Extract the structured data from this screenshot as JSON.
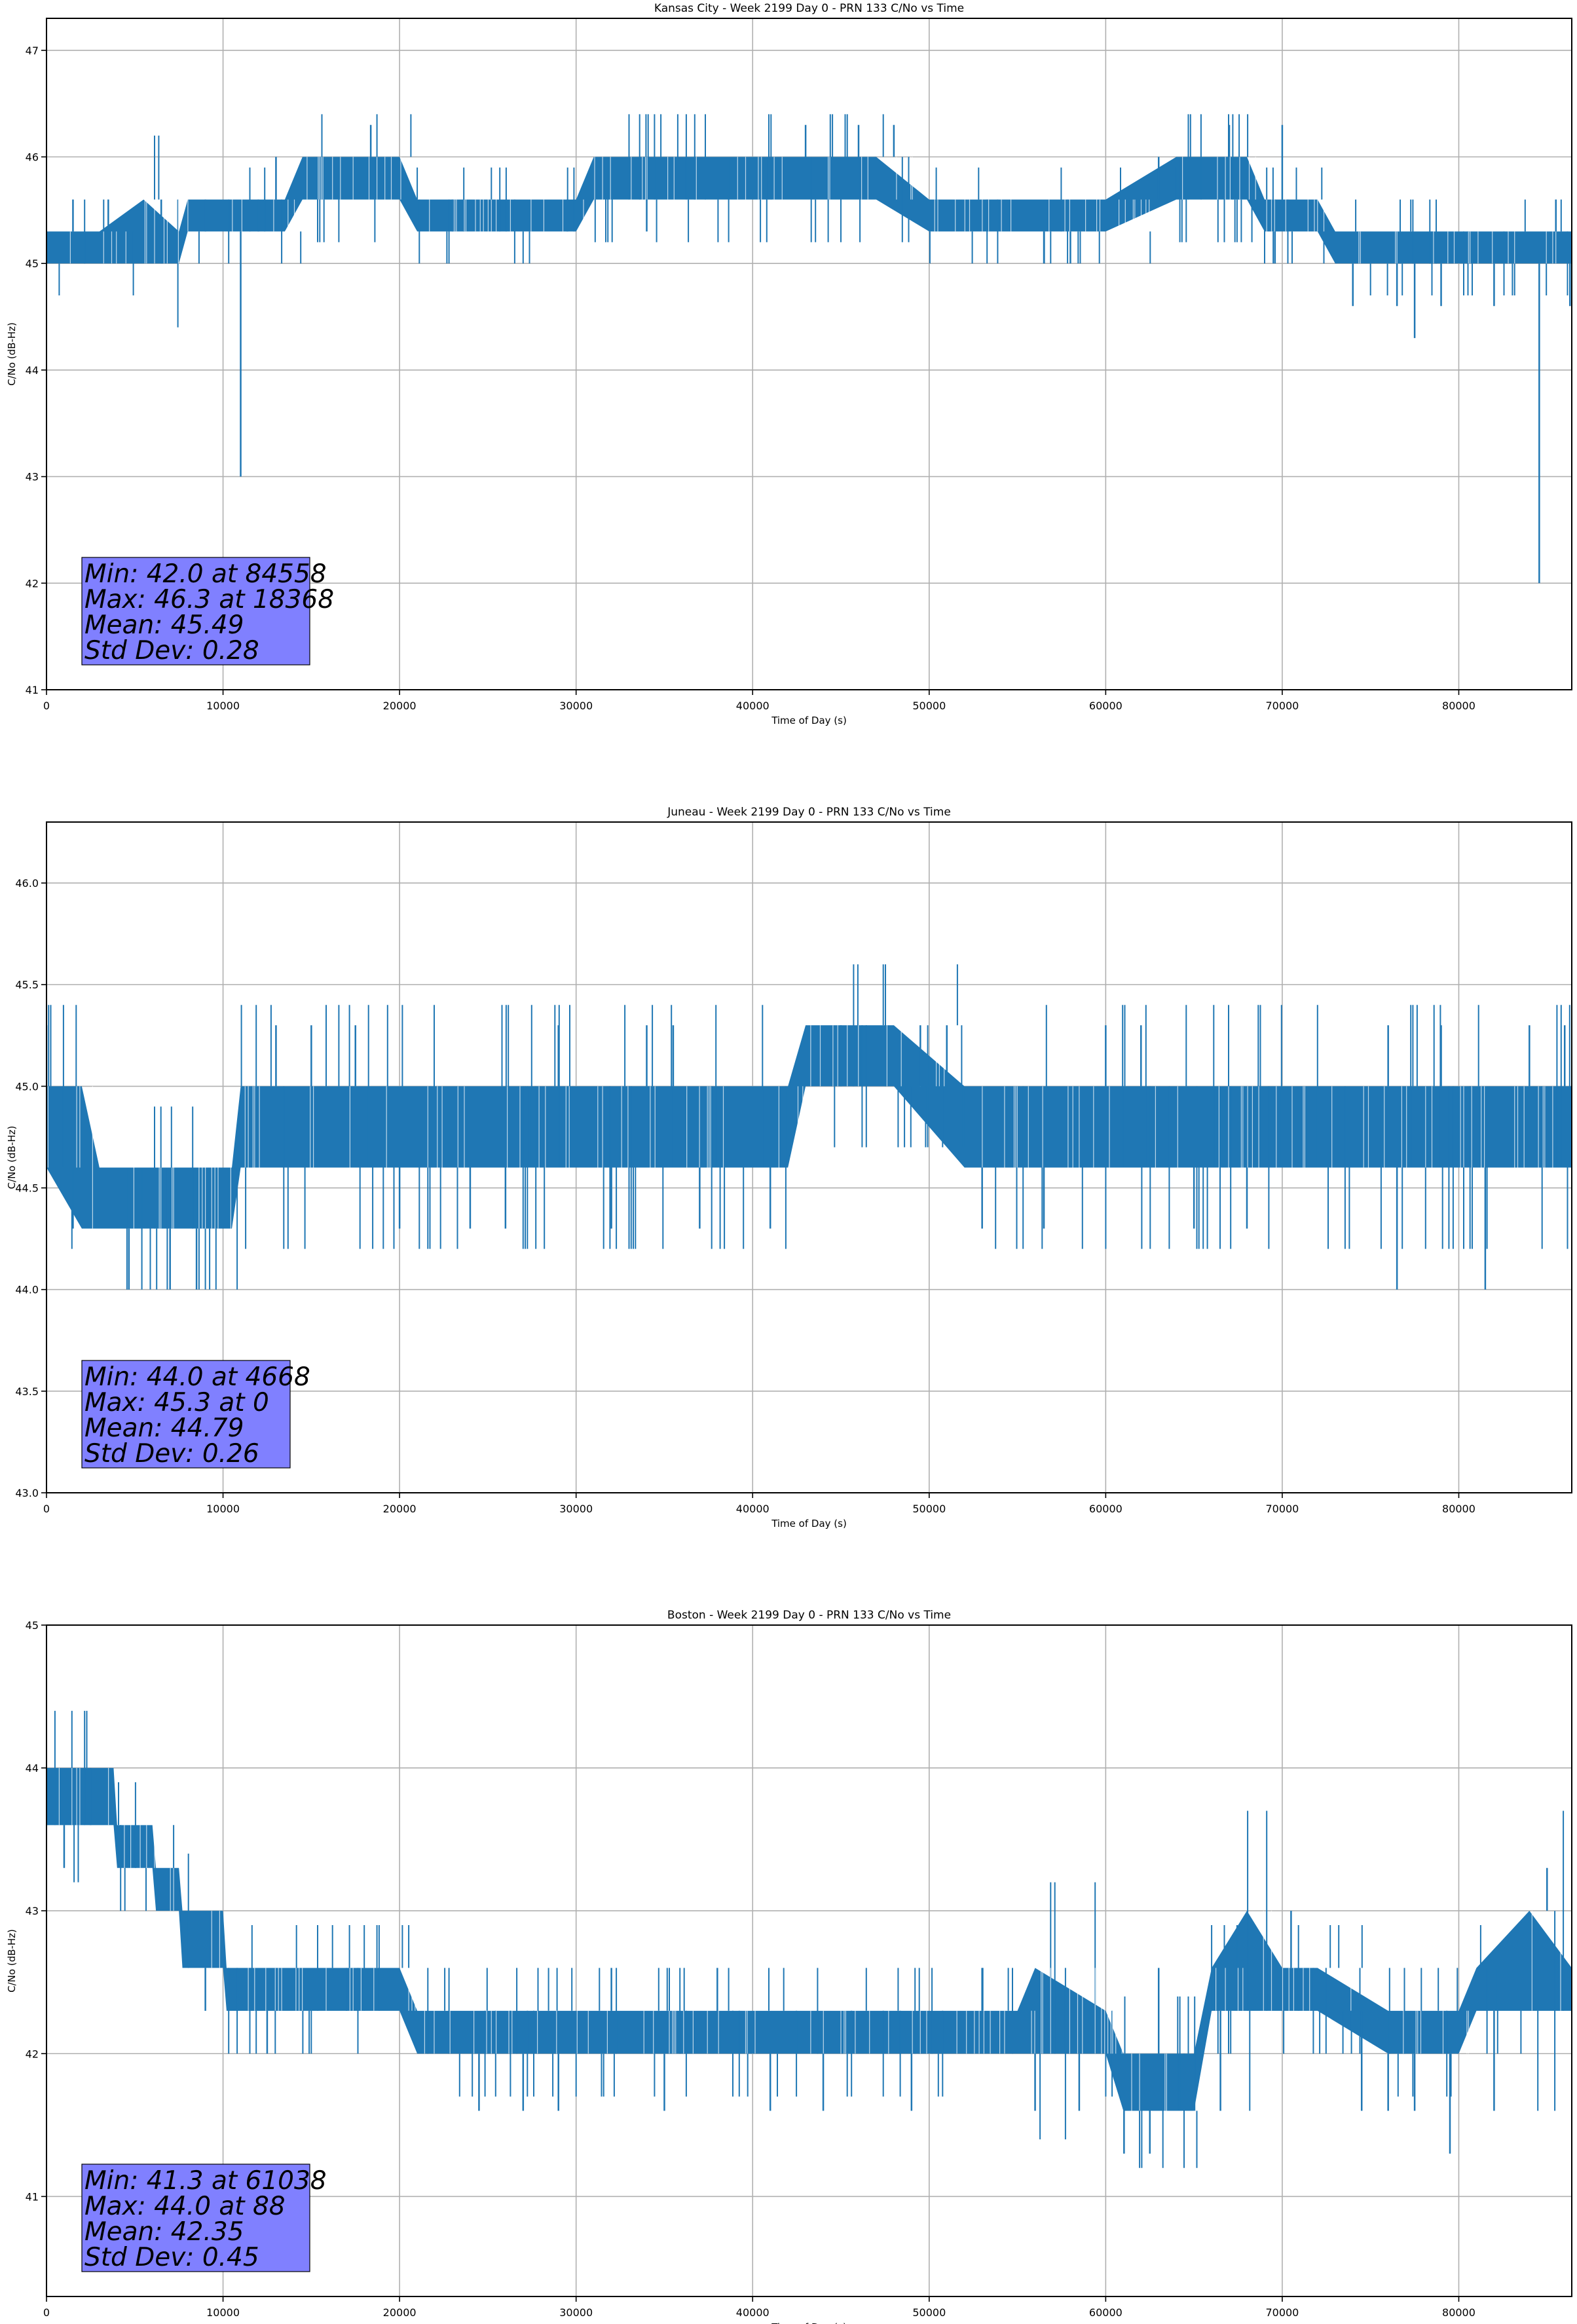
{
  "colors": {
    "series": "#1f77b4",
    "stats_box": "#8080ff",
    "grid": "#b0b0b0",
    "axes": "#000000"
  },
  "chart_data": [
    {
      "type": "line",
      "title": "Kansas City - Week 2199 Day 0 - PRN 133 C/No vs Time",
      "xlabel": "Time of Day (s)",
      "ylabel": "C/No (dB-Hz)",
      "xlim": [
        0,
        86400
      ],
      "ylim": [
        41,
        47.3
      ],
      "xticks": [
        0,
        10000,
        20000,
        30000,
        40000,
        50000,
        60000,
        70000,
        80000
      ],
      "yticks": [
        41,
        42,
        43,
        44,
        45,
        46,
        47
      ],
      "ytick_labels": [
        "41",
        "42",
        "43",
        "44",
        "45",
        "46",
        "47"
      ],
      "grid": true,
      "band": [
        [
          0,
          45.0,
          45.3
        ],
        [
          3000,
          45.0,
          45.3
        ],
        [
          5500,
          45.0,
          45.6
        ],
        [
          7500,
          45.0,
          45.3
        ],
        [
          8000,
          45.3,
          45.6
        ],
        [
          10000,
          45.3,
          45.6
        ],
        [
          13500,
          45.3,
          45.6
        ],
        [
          14500,
          45.6,
          46.0
        ],
        [
          16000,
          45.6,
          46.0
        ],
        [
          20000,
          45.6,
          46.0
        ],
        [
          21000,
          45.3,
          45.6
        ],
        [
          29000,
          45.3,
          45.6
        ],
        [
          30000,
          45.3,
          45.6
        ],
        [
          31000,
          45.6,
          46.0
        ],
        [
          35000,
          45.6,
          46.0
        ],
        [
          40000,
          45.6,
          46.0
        ],
        [
          47000,
          45.6,
          46.0
        ],
        [
          50000,
          45.3,
          45.6
        ],
        [
          54000,
          45.3,
          45.6
        ],
        [
          57000,
          45.3,
          45.6
        ],
        [
          60000,
          45.3,
          45.6
        ],
        [
          64000,
          45.6,
          46.0
        ],
        [
          68000,
          45.6,
          46.0
        ],
        [
          69000,
          45.3,
          45.6
        ],
        [
          72000,
          45.3,
          45.6
        ],
        [
          73000,
          45.0,
          45.3
        ],
        [
          77000,
          45.0,
          45.3
        ],
        [
          80000,
          45.0,
          45.3
        ],
        [
          86400,
          45.0,
          45.3
        ]
      ],
      "spikes": [
        [
          0,
          45.3
        ],
        [
          1500,
          45.6
        ],
        [
          3500,
          45.6
        ],
        [
          6500,
          45.6
        ],
        [
          9000,
          45.6
        ],
        [
          12000,
          45.6
        ],
        [
          13000,
          46.0
        ],
        [
          18368,
          46.3
        ],
        [
          21000,
          45.3
        ],
        [
          23000,
          45.6
        ],
        [
          29500,
          45.6
        ],
        [
          34000,
          45.3
        ],
        [
          43000,
          46.3
        ],
        [
          46000,
          46.3
        ],
        [
          48000,
          46.3
        ],
        [
          51000,
          45.3
        ],
        [
          56500,
          45.0
        ],
        [
          58000,
          45.0
        ],
        [
          63000,
          46.0
        ],
        [
          67000,
          46.3
        ],
        [
          69500,
          45.0
        ],
        [
          70000,
          46.3
        ],
        [
          72500,
          45.3
        ],
        [
          74000,
          44.6
        ],
        [
          76500,
          44.6
        ],
        [
          77500,
          44.3
        ],
        [
          79000,
          44.6
        ],
        [
          82000,
          44.6
        ],
        [
          85500,
          45.6
        ],
        [
          86300,
          44.6
        ],
        [
          11000,
          43.0
        ],
        [
          84558,
          42.0
        ]
      ],
      "stats": {
        "min": "Min: 42.0 at 84558",
        "max": "Max: 46.3 at 18368",
        "mean": "Mean: 45.49",
        "std": "Std Dev: 0.28"
      }
    },
    {
      "type": "line",
      "title": "Juneau - Week 2199 Day 0 - PRN 133 C/No vs Time",
      "xlabel": "Time of Day (s)",
      "ylabel": "C/No (dB-Hz)",
      "xlim": [
        0,
        86400
      ],
      "ylim": [
        43.0,
        46.3
      ],
      "xticks": [
        0,
        10000,
        20000,
        30000,
        40000,
        50000,
        60000,
        70000,
        80000
      ],
      "yticks": [
        43.0,
        43.5,
        44.0,
        44.5,
        45.0,
        45.5,
        46.0
      ],
      "ytick_labels": [
        "43.0",
        "43.5",
        "44.0",
        "44.5",
        "45.0",
        "45.5",
        "46.0"
      ],
      "grid": true,
      "band": [
        [
          0,
          44.6,
          45.0
        ],
        [
          2000,
          44.3,
          45.0
        ],
        [
          3000,
          44.3,
          44.6
        ],
        [
          5000,
          44.3,
          44.6
        ],
        [
          8000,
          44.3,
          44.6
        ],
        [
          10500,
          44.3,
          44.6
        ],
        [
          11000,
          44.6,
          45.0
        ],
        [
          14000,
          44.6,
          45.0
        ],
        [
          18000,
          44.6,
          45.0
        ],
        [
          30000,
          44.6,
          45.0
        ],
        [
          42000,
          44.6,
          45.0
        ],
        [
          43000,
          45.0,
          45.3
        ],
        [
          48000,
          45.0,
          45.3
        ],
        [
          52000,
          44.6,
          45.0
        ],
        [
          64000,
          44.6,
          45.0
        ],
        [
          70000,
          44.6,
          45.0
        ],
        [
          80000,
          44.6,
          45.0
        ],
        [
          86400,
          44.6,
          45.0
        ]
      ],
      "spikes": [
        [
          0,
          45.3
        ],
        [
          1500,
          44.3
        ],
        [
          4668,
          44.0
        ],
        [
          7000,
          44.0
        ],
        [
          8500,
          44.0
        ],
        [
          13000,
          45.3
        ],
        [
          15000,
          45.3
        ],
        [
          17500,
          45.3
        ],
        [
          20000,
          44.3
        ],
        [
          24000,
          44.3
        ],
        [
          26000,
          44.3
        ],
        [
          29000,
          45.3
        ],
        [
          32000,
          44.3
        ],
        [
          34000,
          45.3
        ],
        [
          35500,
          45.3
        ],
        [
          37000,
          44.3
        ],
        [
          41000,
          44.3
        ],
        [
          45000,
          45.3
        ],
        [
          49500,
          45.3
        ],
        [
          51000,
          45.3
        ],
        [
          53000,
          44.3
        ],
        [
          56500,
          44.3
        ],
        [
          60000,
          45.3
        ],
        [
          62000,
          45.3
        ],
        [
          65000,
          44.3
        ],
        [
          68000,
          44.3
        ],
        [
          76000,
          45.3
        ],
        [
          76500,
          44.0
        ],
        [
          79000,
          45.3
        ],
        [
          81500,
          44.0
        ],
        [
          84000,
          45.3
        ],
        [
          86000,
          45.3
        ]
      ],
      "stats": {
        "min": "Min: 44.0 at 4668",
        "max": "Max: 45.3 at 0",
        "mean": "Mean: 44.79",
        "std": "Std Dev: 0.26"
      }
    },
    {
      "type": "line",
      "title": "Boston - Week 2199 Day 0 - PRN 133 C/No vs Time",
      "xlabel": "Time of Day (s)",
      "ylabel": "C/No (dB-Hz)",
      "xlim": [
        0,
        86400
      ],
      "ylim": [
        40.3,
        45.0
      ],
      "xticks": [
        0,
        10000,
        20000,
        30000,
        40000,
        50000,
        60000,
        70000,
        80000
      ],
      "yticks": [
        41,
        42,
        43,
        44,
        45
      ],
      "ytick_labels": [
        "41",
        "42",
        "43",
        "44",
        "45"
      ],
      "grid": true,
      "band": [
        [
          0,
          43.6,
          44.0
        ],
        [
          3800,
          43.6,
          44.0
        ],
        [
          4000,
          43.3,
          43.6
        ],
        [
          6000,
          43.3,
          43.6
        ],
        [
          6200,
          43.0,
          43.3
        ],
        [
          7500,
          43.0,
          43.3
        ],
        [
          7700,
          42.6,
          43.0
        ],
        [
          10000,
          42.6,
          43.0
        ],
        [
          10200,
          42.3,
          42.6
        ],
        [
          20000,
          42.3,
          42.6
        ],
        [
          21000,
          42.0,
          42.3
        ],
        [
          45000,
          42.0,
          42.3
        ],
        [
          47000,
          42.0,
          42.3
        ],
        [
          55000,
          42.0,
          42.3
        ],
        [
          56000,
          42.0,
          42.6
        ],
        [
          60000,
          42.0,
          42.3
        ],
        [
          61000,
          41.6,
          42.0
        ],
        [
          65000,
          41.6,
          42.0
        ],
        [
          66000,
          42.3,
          42.6
        ],
        [
          68000,
          42.3,
          43.0
        ],
        [
          70000,
          42.3,
          42.6
        ],
        [
          72000,
          42.3,
          42.6
        ],
        [
          76000,
          42.0,
          42.3
        ],
        [
          80000,
          42.0,
          42.3
        ],
        [
          81000,
          42.3,
          42.6
        ],
        [
          84000,
          42.3,
          43.0
        ],
        [
          86400,
          42.3,
          42.6
        ]
      ],
      "spikes": [
        [
          88,
          44.0
        ],
        [
          1000,
          43.3
        ],
        [
          2500,
          44.0
        ],
        [
          4000,
          43.3
        ],
        [
          5500,
          43.3
        ],
        [
          9000,
          42.3
        ],
        [
          12500,
          42.0
        ],
        [
          17000,
          42.6
        ],
        [
          22000,
          42.0
        ],
        [
          24500,
          41.6
        ],
        [
          27000,
          41.6
        ],
        [
          29000,
          41.6
        ],
        [
          32000,
          42.6
        ],
        [
          35000,
          41.6
        ],
        [
          38000,
          42.6
        ],
        [
          41000,
          41.6
        ],
        [
          44000,
          41.6
        ],
        [
          49000,
          41.6
        ],
        [
          53000,
          42.6
        ],
        [
          56000,
          41.6
        ],
        [
          58500,
          41.6
        ],
        [
          61038,
          41.3
        ],
        [
          62500,
          41.3
        ],
        [
          63000,
          42.6
        ],
        [
          66500,
          41.6
        ],
        [
          70500,
          43.0
        ],
        [
          74500,
          41.6
        ],
        [
          76000,
          41.6
        ],
        [
          77500,
          41.6
        ],
        [
          79500,
          41.3
        ],
        [
          82000,
          41.6
        ],
        [
          85000,
          43.3
        ],
        [
          86000,
          42.3
        ]
      ],
      "stats": {
        "min": "Min: 41.3 at 61038",
        "max": "Max: 44.0 at 88",
        "mean": "Mean: 42.35",
        "std": "Std Dev: 0.45"
      }
    }
  ]
}
